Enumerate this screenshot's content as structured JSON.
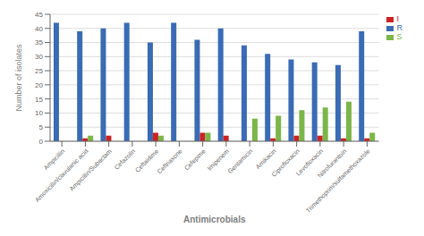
{
  "chart_data": {
    "type": "bar",
    "xlabel": "Antimicrobials",
    "ylabel": "Number of isolates",
    "categories": [
      "Ampicillin",
      "Amoxicillin/clavulanic acid",
      "Ampicillin/Subactam",
      "Cefazolin",
      "Ceftaidime",
      "Ceftriaxone",
      "Cefepime",
      "Imipenem",
      "Gentamicin",
      "Amikacin",
      "Ciprofloxacin",
      "Levofloxacin",
      "Nitrofurantoin",
      "Trimethoprim/sulfamethoxazole"
    ],
    "series": [
      {
        "name": "R",
        "color": "#3a6bb5",
        "values": [
          42,
          39,
          40,
          42,
          35,
          42,
          36,
          40,
          34,
          31,
          29,
          28,
          27,
          39
        ]
      },
      {
        "name": "I",
        "color": "#cc2222",
        "values": [
          0,
          1,
          2,
          0,
          3,
          0,
          3,
          2,
          0,
          1,
          2,
          2,
          1,
          1
        ]
      },
      {
        "name": "S",
        "color": "#7ab648",
        "values": [
          0,
          2,
          0,
          0,
          2,
          0,
          3,
          0,
          8,
          9,
          11,
          12,
          14,
          3
        ]
      }
    ],
    "ylim": [
      0,
      45
    ],
    "yticks": [
      0,
      5,
      10,
      15,
      20,
      25,
      30,
      35,
      40,
      45
    ],
    "grid": true,
    "legend": "right"
  }
}
